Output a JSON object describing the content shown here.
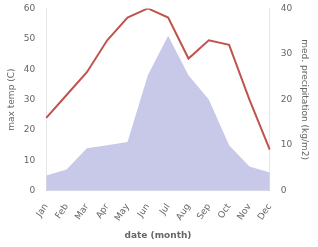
{
  "chart_data": {
    "type": "line",
    "xlabel": "date (month)",
    "ylabel": "max temp (C)",
    "y2label": "med. precipitation (kg/m2)",
    "categories": [
      "Jan",
      "Feb",
      "Mar",
      "Apr",
      "May",
      "Jun",
      "Jul",
      "Aug",
      "Sep",
      "Oct",
      "Nov",
      "Dec"
    ],
    "series": [
      {
        "type": "area",
        "color": "#aaaadd",
        "values": [
          5,
          7,
          14,
          15,
          16,
          38,
          51,
          38,
          30,
          15,
          8,
          6
        ]
      },
      {
        "type": "line",
        "color": "#c0544d",
        "axis": "y2",
        "values": [
          16,
          21,
          26,
          33,
          38,
          40,
          38,
          29,
          33,
          32,
          20,
          9
        ]
      }
    ],
    "ylim": [
      0,
      60
    ],
    "yticks": [
      0,
      10,
      20,
      30,
      40,
      50,
      60
    ],
    "y2lim": [
      0,
      40
    ],
    "y2ticks": [
      0,
      10,
      20,
      30,
      40
    ],
    "grid": false
  }
}
